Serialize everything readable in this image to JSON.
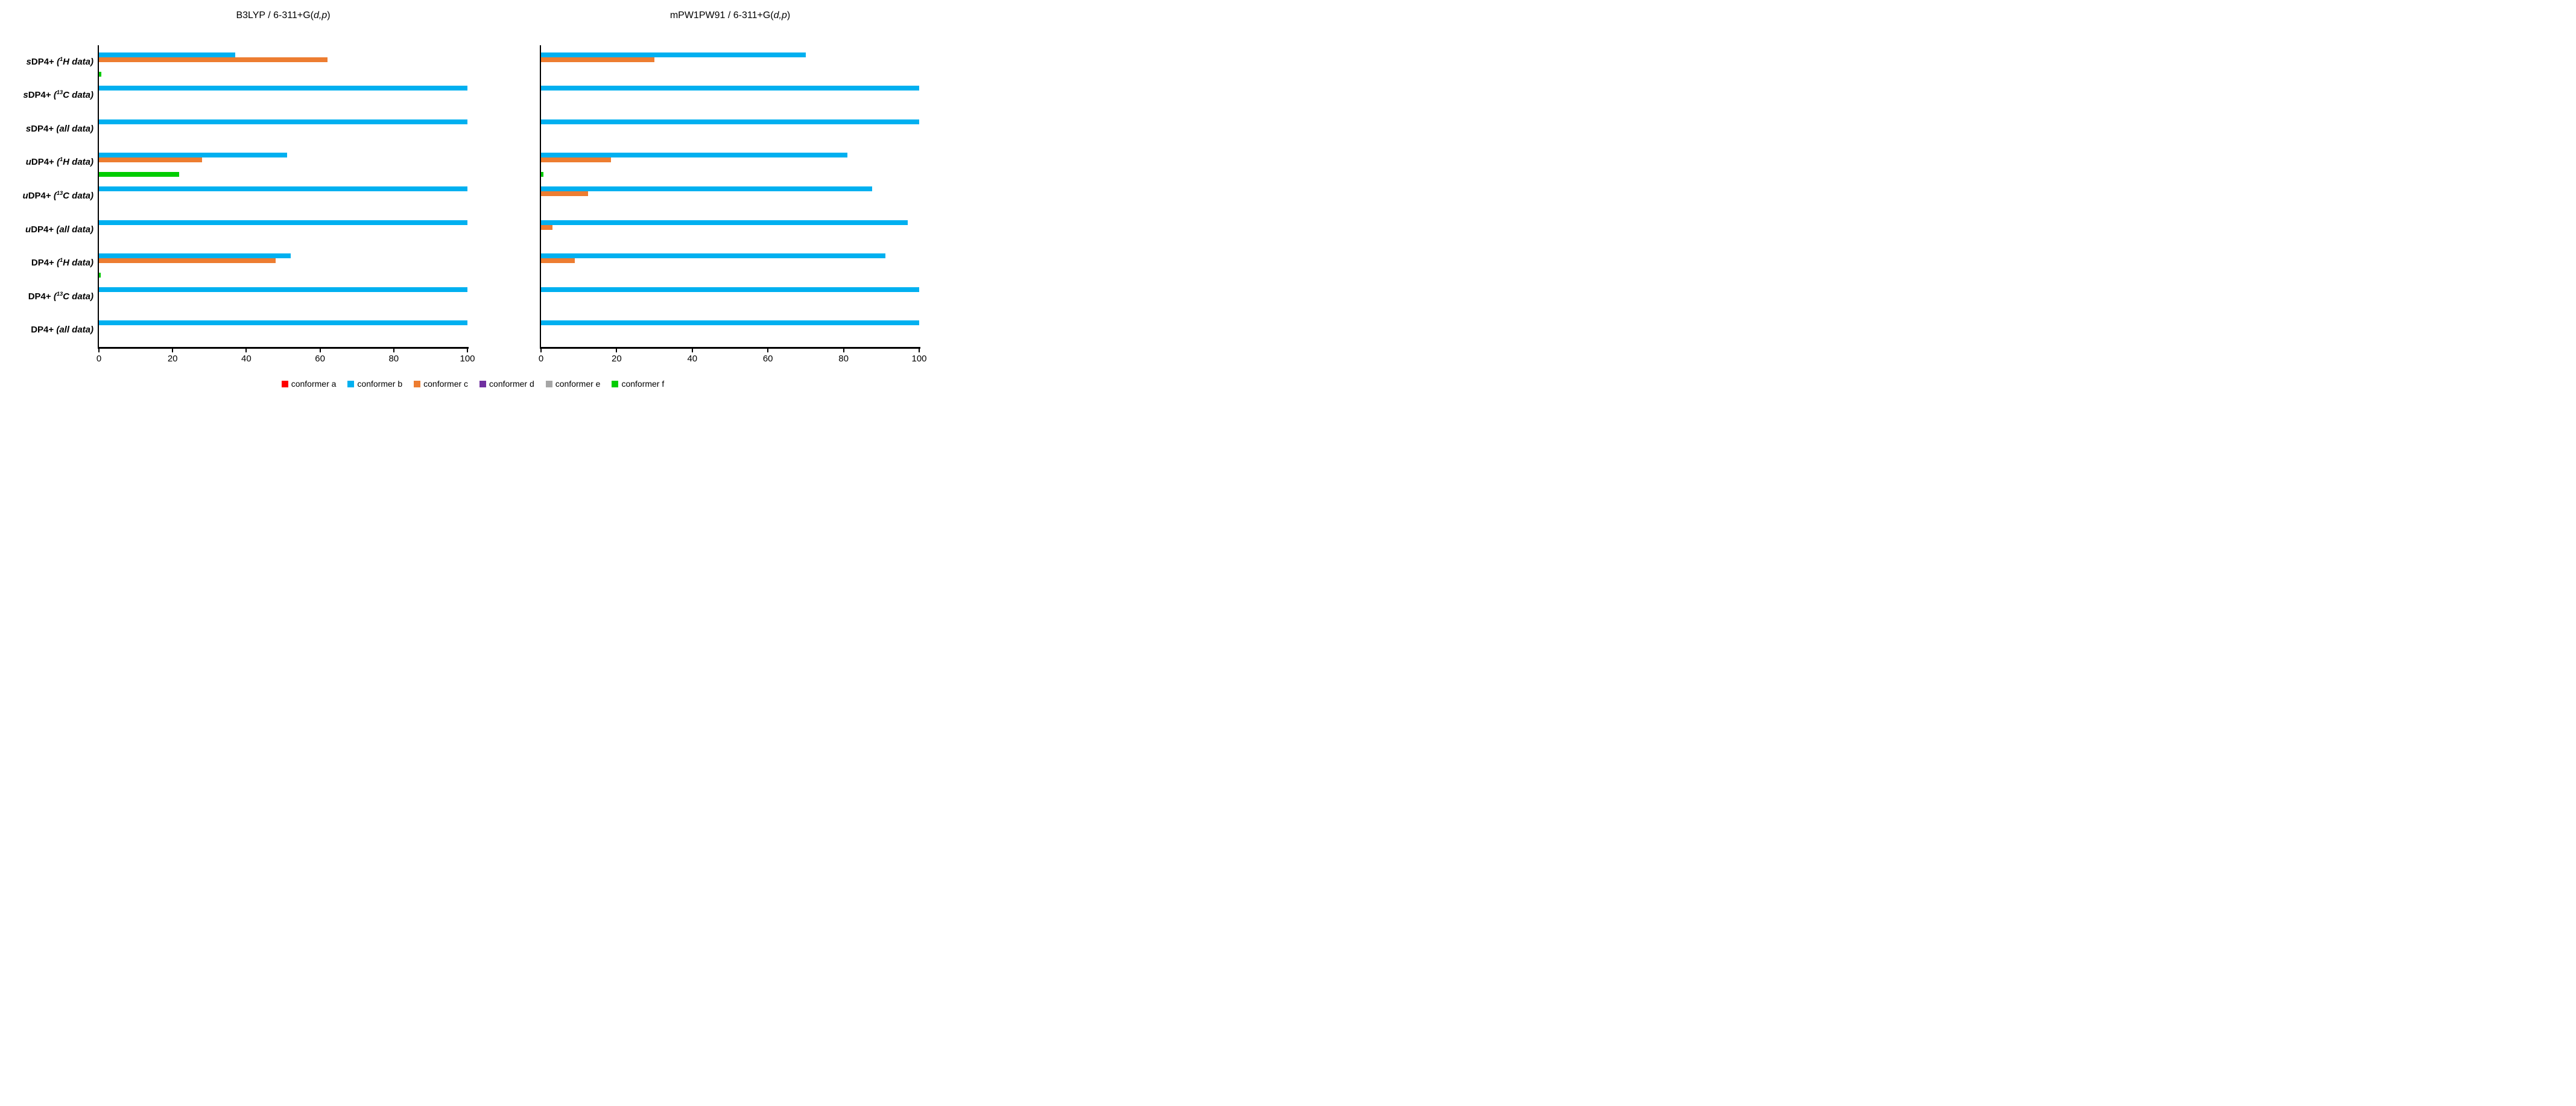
{
  "figure": {
    "background": "#FFFFFF",
    "text_color": "#000000",
    "axis_color": "#000000"
  },
  "chart_data": [
    {
      "type": "bar",
      "orientation": "horizontal",
      "title": "B3LYP / 6-311+G(d,p)",
      "categories": [
        "sDP4+ (¹H data)",
        "sDP4+ (¹³C data)",
        "sDP4+ (all data)",
        "uDP4+ (¹H data)",
        "uDP4+ (¹³C data)",
        "uDP4+ (all data)",
        "DP4+ (¹H data)",
        "DP4+ (¹³C data)",
        "DP4+ (all data)"
      ],
      "xlabel": "",
      "ylabel": "",
      "xlim": [
        0,
        100
      ],
      "xticks": [
        0,
        20,
        40,
        60,
        80,
        100
      ],
      "grid": false,
      "legend_position": "bottom",
      "series": [
        {
          "name": "conformer a",
          "color": "#FF0000",
          "values": [
            0,
            0,
            0,
            0,
            0,
            0,
            0,
            0,
            0
          ]
        },
        {
          "name": "conformer b",
          "color": "#00B0F0",
          "values": [
            37,
            100,
            100,
            51,
            100,
            100,
            52,
            100,
            100
          ]
        },
        {
          "name": "conformer c",
          "color": "#ED7D31",
          "values": [
            62,
            0,
            0,
            28,
            0,
            0,
            48,
            0,
            0
          ]
        },
        {
          "name": "conformer d",
          "color": "#7030A0",
          "values": [
            0,
            0,
            0,
            0,
            0,
            0,
            0,
            0,
            0
          ]
        },
        {
          "name": "conformer e",
          "color": "#A6A6A6",
          "values": [
            0,
            0,
            0,
            0,
            0,
            0,
            0,
            0,
            0
          ]
        },
        {
          "name": "conformer f",
          "color": "#00CC00",
          "values": [
            0.7,
            0,
            0,
            21.7,
            0,
            0,
            0.5,
            0,
            0
          ]
        }
      ]
    },
    {
      "type": "bar",
      "orientation": "horizontal",
      "title": "mPW1PW91 / 6-311+G(d,p)",
      "categories": [
        "sDP4+ (¹H data)",
        "sDP4+ (¹³C data)",
        "sDP4+ (all data)",
        "uDP4+ (¹H data)",
        "uDP4+ (¹³C data)",
        "uDP4+ (all data)",
        "DP4+ (¹H data)",
        "DP4+ (¹³C data)",
        "DP4+ (all data)"
      ],
      "xlabel": "",
      "ylabel": "",
      "xlim": [
        0,
        100
      ],
      "xticks": [
        0,
        20,
        40,
        60,
        80,
        100
      ],
      "grid": false,
      "legend_position": "bottom",
      "series": [
        {
          "name": "conformer a",
          "color": "#FF0000",
          "values": [
            0,
            0,
            0,
            0,
            0,
            0,
            0,
            0,
            0
          ]
        },
        {
          "name": "conformer b",
          "color": "#00B0F0",
          "values": [
            70,
            100,
            100,
            81,
            87.5,
            97,
            91,
            100,
            100
          ]
        },
        {
          "name": "conformer c",
          "color": "#ED7D31",
          "values": [
            30,
            0,
            0,
            18.5,
            12.5,
            3,
            9,
            0,
            0
          ]
        },
        {
          "name": "conformer d",
          "color": "#7030A0",
          "values": [
            0,
            0,
            0,
            0,
            0,
            0,
            0,
            0,
            0
          ]
        },
        {
          "name": "conformer e",
          "color": "#A6A6A6",
          "values": [
            0,
            0,
            0,
            0,
            0,
            0,
            0,
            0,
            0
          ]
        },
        {
          "name": "conformer f",
          "color": "#00CC00",
          "values": [
            0,
            0,
            0,
            0.7,
            0,
            0,
            0,
            0,
            0
          ]
        }
      ]
    }
  ],
  "presentation": {
    "titles": [
      {
        "parts": [
          {
            "t": "B3LYP / 6-311+G(",
            "i": false
          },
          {
            "t": "d,p",
            "i": true
          },
          {
            "t": ")",
            "i": false
          }
        ]
      },
      {
        "parts": [
          {
            "t": "mPW1PW91 / 6-311+G(",
            "i": false
          },
          {
            "t": "d,p",
            "i": true
          },
          {
            "t": ")",
            "i": false
          }
        ]
      }
    ],
    "category_labels": [
      {
        "pre": "s",
        "base": "DP4+ ",
        "sup": "1",
        "note": "H data"
      },
      {
        "pre": "s",
        "base": "DP4+ ",
        "sup": "13",
        "note": "C data"
      },
      {
        "pre": "s",
        "base": "DP4+ ",
        "sup": "",
        "note": "all data"
      },
      {
        "pre": "u",
        "base": "DP4+ ",
        "sup": "1",
        "note": "H data"
      },
      {
        "pre": "u",
        "base": "DP4+ ",
        "sup": "13",
        "note": "C data"
      },
      {
        "pre": "u",
        "base": "DP4+ ",
        "sup": "",
        "note": "all data"
      },
      {
        "pre": "",
        "base": "DP4+ ",
        "sup": "1",
        "note": "H data"
      },
      {
        "pre": "",
        "base": "DP4+ ",
        "sup": "13",
        "note": "C data"
      },
      {
        "pre": "",
        "base": "DP4+ ",
        "sup": "",
        "note": "all data"
      }
    ],
    "legend_labels": [
      "conformer a",
      "conformer b",
      "conformer c",
      "conformer d",
      "conformer e",
      "conformer f"
    ]
  }
}
